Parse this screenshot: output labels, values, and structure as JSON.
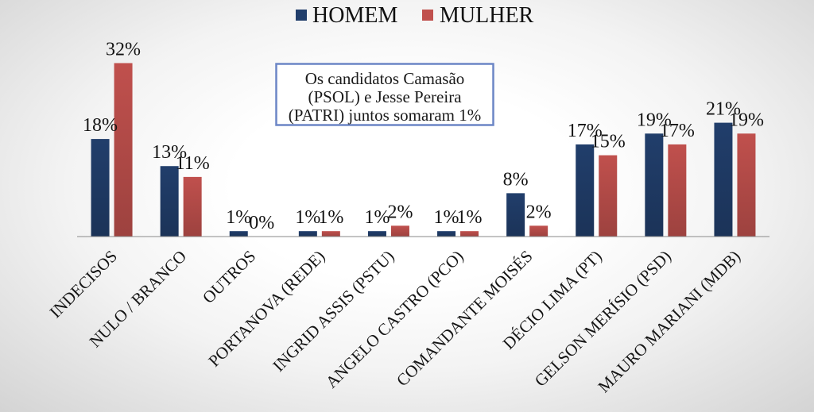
{
  "chart_data": {
    "type": "bar",
    "categories": [
      "INDECISOS",
      "NULO / BRANCO",
      "OUTROS",
      "PORTANOVA (REDE)",
      "INGRID ASSIS (PSTU)",
      "ANGELO CASTRO (PCO)",
      "COMANDANTE MOISÉS",
      "DÉCIO LIMA (PT)",
      "GELSON MERÍSIO (PSD)",
      "MAURO MARIANI (MDB)"
    ],
    "series": [
      {
        "name": "HOMEM",
        "color": "#213e6b",
        "values": [
          18,
          13,
          1,
          1,
          1,
          1,
          8,
          17,
          19,
          21
        ]
      },
      {
        "name": "MULHER",
        "color": "#c0504d",
        "values": [
          32,
          11,
          0,
          1,
          2,
          1,
          2,
          15,
          17,
          19
        ]
      }
    ],
    "value_suffix": "%",
    "ylim": [
      0,
      35
    ],
    "grid": false,
    "legend": "top",
    "annotation": [
      "Os candidatos Camasão",
      "(PSOL) e Jesse Pereira",
      "(PATRI) juntos somaram 1%"
    ]
  }
}
